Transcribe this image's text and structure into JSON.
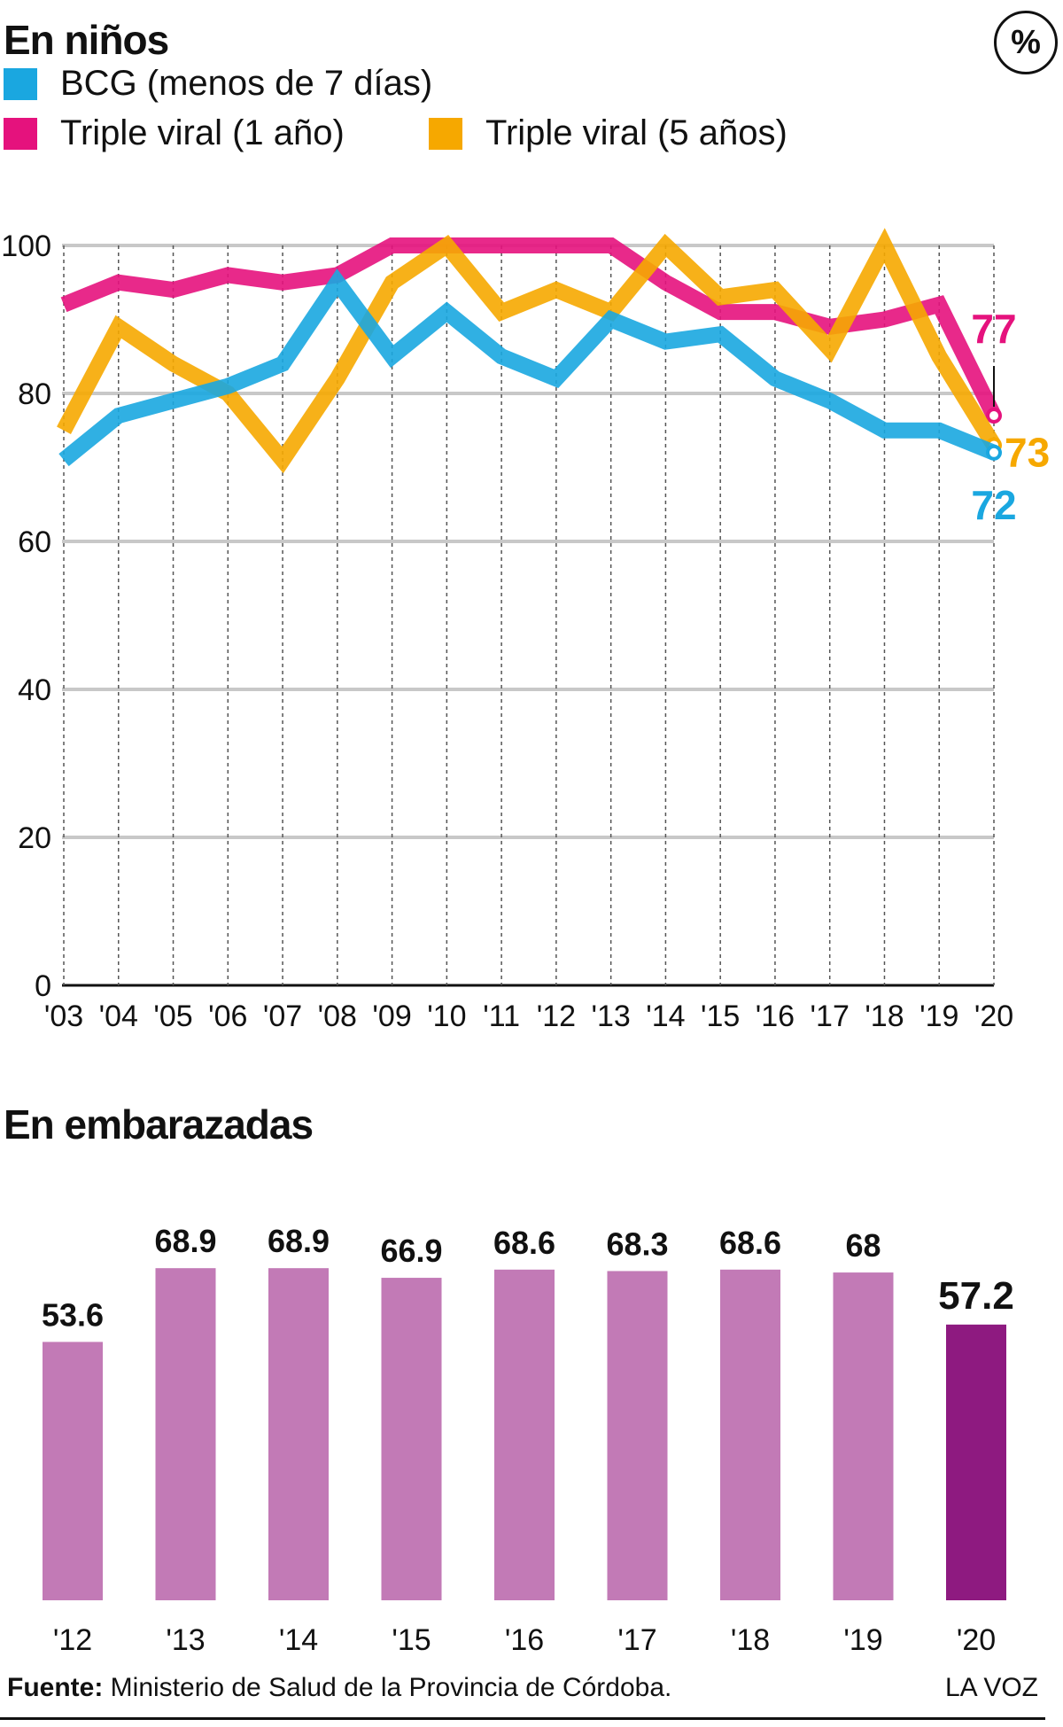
{
  "header": {
    "title_children": "En niños",
    "title_pregnant": "En embarazadas",
    "unit_badge": "%"
  },
  "legend": [
    {
      "label": "BCG (menos de 7 días)",
      "color": "#1aa7e0"
    },
    {
      "label": "Triple viral (1 año)",
      "color": "#e5127d"
    },
    {
      "label": "Triple viral (5 años)",
      "color": "#f6a800"
    }
  ],
  "chart_data": [
    {
      "type": "line",
      "title": "En niños",
      "ylim": [
        0,
        100
      ],
      "yticks": [
        0,
        20,
        40,
        60,
        80,
        100
      ],
      "x": [
        "'03",
        "'04",
        "'05",
        "'06",
        "'07",
        "'08",
        "'09",
        "'10",
        "'11",
        "'12",
        "'13",
        "'14",
        "'15",
        "'16",
        "'17",
        "'18",
        "'19",
        "'20"
      ],
      "grid": true,
      "series": [
        {
          "name": "Triple viral (1 año)",
          "color": "#e5127d",
          "values": [
            92,
            95,
            94,
            96,
            95,
            96,
            100,
            100,
            100,
            100,
            100,
            95,
            91,
            91,
            89,
            90,
            92,
            77
          ],
          "end_label": "77"
        },
        {
          "name": "Triple viral (5 años)",
          "color": "#f6a800",
          "values": [
            75,
            89,
            84,
            80,
            71,
            82,
            95,
            100,
            91,
            94,
            91,
            100,
            93,
            94,
            86,
            100,
            85,
            73
          ],
          "end_label": "73"
        },
        {
          "name": "BCG (menos de 7 días)",
          "color": "#1aa7e0",
          "values": [
            71,
            77,
            79,
            81,
            84,
            95,
            85,
            91,
            85,
            82,
            90,
            87,
            88,
            82,
            79,
            75,
            75,
            72
          ],
          "end_label": "72"
        }
      ]
    },
    {
      "type": "bar",
      "title": "En embarazadas",
      "categories": [
        "'12",
        "'13",
        "'14",
        "'15",
        "'16",
        "'17",
        "'18",
        "'19",
        "'20"
      ],
      "values": [
        53.6,
        68.9,
        68.9,
        66.9,
        68.6,
        68.3,
        68.6,
        68,
        57.2
      ],
      "value_labels": [
        "53.6",
        "68.9",
        "68.9",
        "66.9",
        "68.6",
        "68.3",
        "68.6",
        "68",
        "57.2"
      ],
      "colors": {
        "default": "#c27ab6",
        "highlight": "#8e1a80"
      },
      "highlight_index": 8
    }
  ],
  "footer": {
    "source_label": "Fuente:",
    "source_text": " Ministerio de Salud de la Provincia de Córdoba.",
    "brand": "LA VOZ"
  }
}
